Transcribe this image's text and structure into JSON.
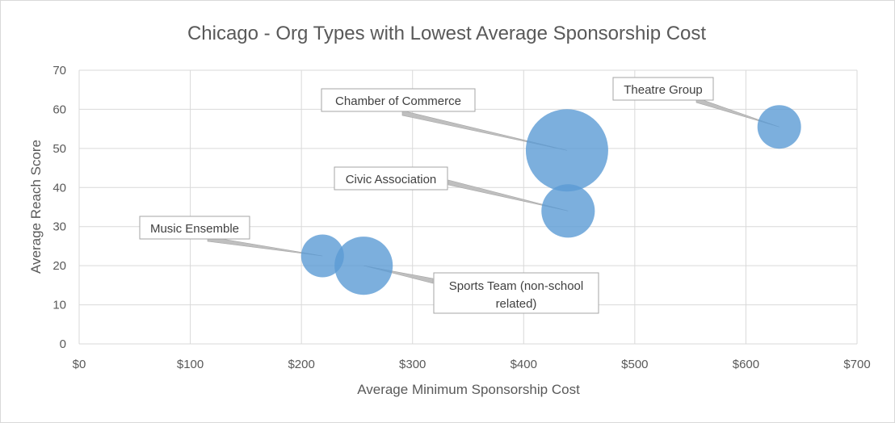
{
  "chart_data": {
    "type": "scatter",
    "title": "Chicago - Org Types with Lowest Average Sponsorship Cost",
    "xlabel": "Average Minimum Sponsorship Cost",
    "ylabel": "Average Reach Score",
    "xlim": [
      0,
      700
    ],
    "ylim": [
      0,
      70
    ],
    "x_ticks": [
      "$0",
      "$100",
      "$200",
      "$300",
      "$400",
      "$500",
      "$600",
      "$700"
    ],
    "y_ticks": [
      "0",
      "10",
      "20",
      "30",
      "40",
      "50",
      "60",
      "70"
    ],
    "grid": true,
    "legend": "none",
    "bubble_color": "#5b9bd5",
    "points": [
      {
        "label": "Chamber of Commerce",
        "x": 439,
        "y": 49.5,
        "size": 100
      },
      {
        "label": "Theatre Group",
        "x": 630,
        "y": 55.5,
        "size": 28
      },
      {
        "label": "Civic Association",
        "x": 440,
        "y": 34,
        "size": 42
      },
      {
        "label": "Music Ensemble",
        "x": 219,
        "y": 22.5,
        "size": 27
      },
      {
        "label": "Sports Team (non-school related)",
        "x": 256,
        "y": 20,
        "size": 50
      }
    ]
  }
}
